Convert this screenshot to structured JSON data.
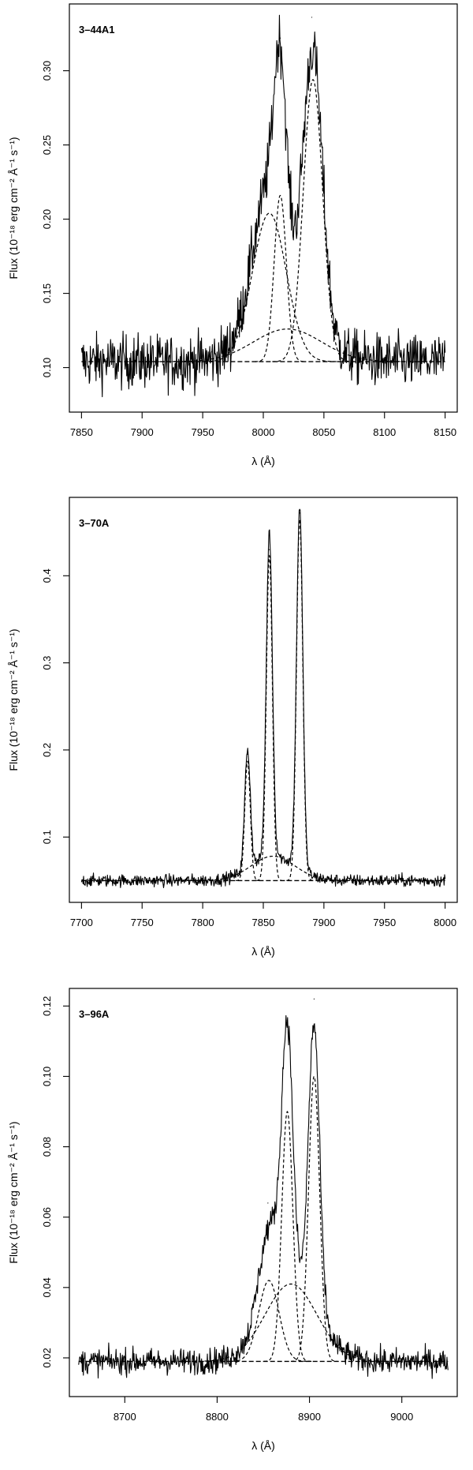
{
  "chart_data": [
    {
      "type": "line",
      "panel_label": "3–44A1",
      "xlabel": "λ (Å)",
      "ylabel": "Flux (10⁻¹⁸ erg cm⁻² Å⁻¹ s⁻¹)",
      "xlim": [
        7840,
        8160
      ],
      "ylim": [
        0.07,
        0.345
      ],
      "xticks": [
        7850,
        7900,
        7950,
        8000,
        8050,
        8100,
        8150
      ],
      "yticks": [
        0.1,
        0.15,
        0.2,
        0.25,
        0.3
      ],
      "ytick_labels": [
        "0.10",
        "0.15",
        "0.20",
        "0.25",
        "0.30"
      ],
      "grid": false,
      "baseline": 0.104,
      "noise_amplitude": 0.009,
      "observed_x_range": [
        7850,
        8150
      ],
      "fit_components": [
        {
          "center": 8005,
          "amplitude": 0.1,
          "sigma": 14
        },
        {
          "center": 8014,
          "amplitude": 0.112,
          "sigma": 5
        },
        {
          "center": 8020,
          "amplitude": 0.022,
          "sigma": 28
        },
        {
          "center": 8041,
          "amplitude": 0.19,
          "sigma": 8
        }
      ],
      "observed_peaks": [
        {
          "x": 8014,
          "y": 0.322
        },
        {
          "x": 8040,
          "y": 0.336
        }
      ]
    },
    {
      "type": "line",
      "panel_label": "3–70A",
      "xlabel": "λ (Å)",
      "ylabel": "Flux (10⁻¹⁸ erg cm⁻² Å⁻¹ s⁻¹)",
      "xlim": [
        7690,
        8010
      ],
      "ylim": [
        0.025,
        0.49
      ],
      "xticks": [
        7700,
        7750,
        7800,
        7850,
        7900,
        7950,
        8000
      ],
      "yticks": [
        0.1,
        0.2,
        0.3,
        0.4
      ],
      "ytick_labels": [
        "0.1",
        "0.2",
        "0.3",
        "0.4"
      ],
      "grid": false,
      "baseline": 0.05,
      "noise_amplitude": 0.0035,
      "observed_x_range": [
        7700,
        8000
      ],
      "fit_components": [
        {
          "center": 7837,
          "amplitude": 0.137,
          "sigma": 2.3
        },
        {
          "center": 7855,
          "amplitude": 0.373,
          "sigma": 2.5
        },
        {
          "center": 7858,
          "amplitude": 0.028,
          "sigma": 18
        },
        {
          "center": 7880,
          "amplitude": 0.415,
          "sigma": 2.6
        }
      ],
      "observed_peaks": [
        {
          "x": 7837,
          "y": 0.195
        },
        {
          "x": 7855,
          "y": 0.43
        },
        {
          "x": 7880,
          "y": 0.472
        }
      ]
    },
    {
      "type": "line",
      "panel_label": "3–96A",
      "xlabel": "λ (Å)",
      "ylabel": "Flux (10⁻¹⁸ erg cm⁻² Å⁻¹ s⁻¹)",
      "xlim": [
        8640,
        9060
      ],
      "ylim": [
        0.009,
        0.125
      ],
      "xticks": [
        8700,
        8800,
        8900,
        9000
      ],
      "yticks": [
        0.02,
        0.04,
        0.06,
        0.08,
        0.1,
        0.12
      ],
      "ytick_labels": [
        "0.02",
        "0.04",
        "0.06",
        "0.08",
        "0.10",
        "0.12"
      ],
      "grid": false,
      "baseline": 0.019,
      "noise_amplitude": 0.0018,
      "observed_x_range": [
        8650,
        9050
      ],
      "fit_components": [
        {
          "center": 8856,
          "amplitude": 0.023,
          "sigma": 11
        },
        {
          "center": 8876,
          "amplitude": 0.071,
          "sigma": 6
        },
        {
          "center": 8880,
          "amplitude": 0.022,
          "sigma": 28
        },
        {
          "center": 8905,
          "amplitude": 0.081,
          "sigma": 6
        }
      ],
      "observed_peaks": [
        {
          "x": 8855,
          "y": 0.064
        },
        {
          "x": 8876,
          "y": 0.116
        },
        {
          "x": 8905,
          "y": 0.122
        }
      ]
    }
  ]
}
